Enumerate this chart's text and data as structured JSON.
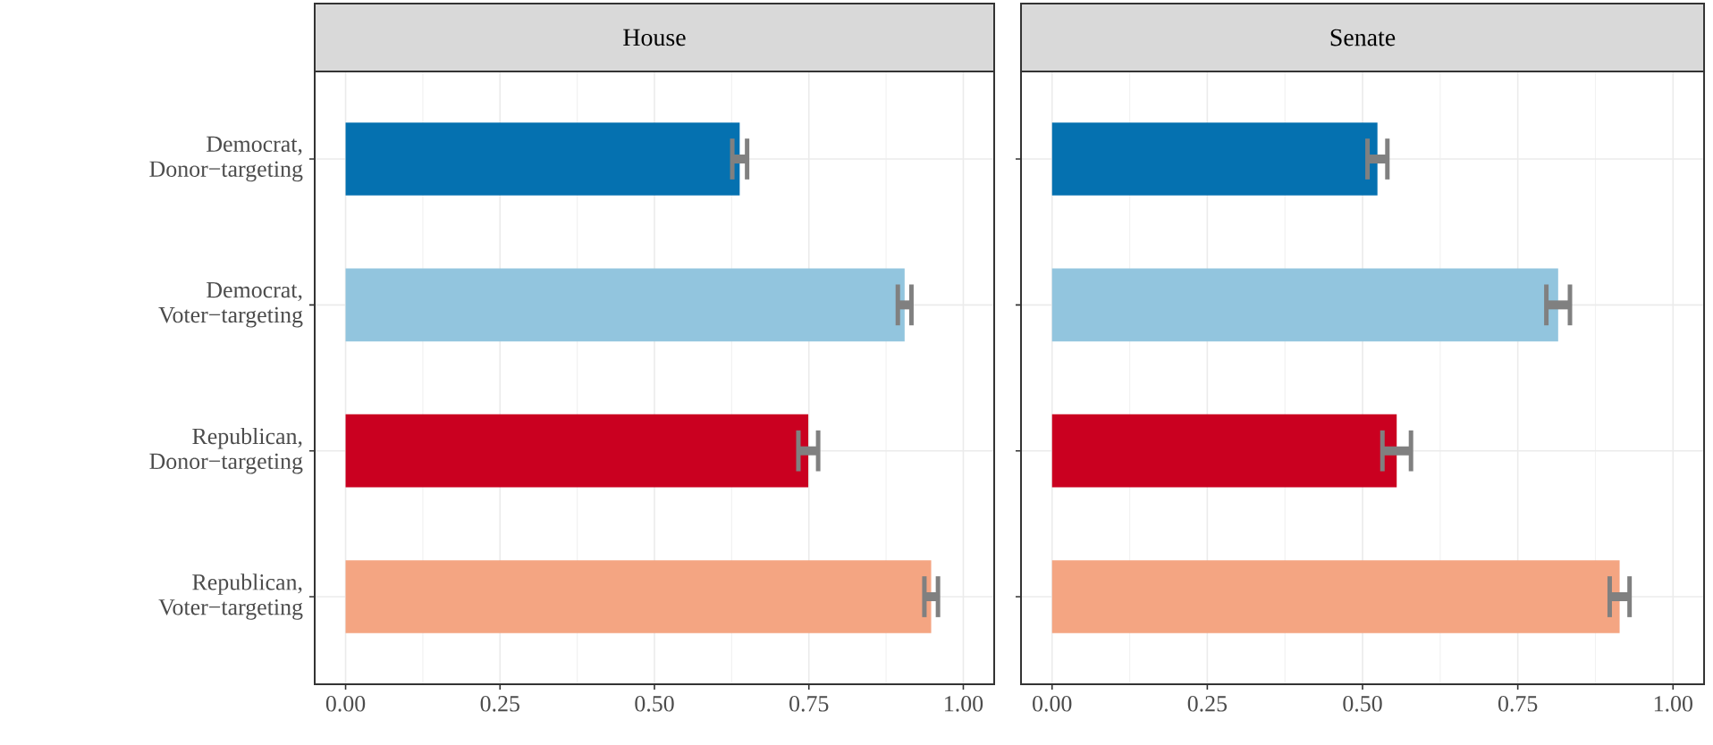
{
  "chart_data": [
    {
      "type": "bar",
      "orientation": "horizontal",
      "title": "House",
      "categories": [
        "Democrat, Donor−targeting",
        "Democrat, Voter−targeting",
        "Republican, Donor−targeting",
        "Republican, Voter−targeting"
      ],
      "values": [
        0.638,
        0.905,
        0.749,
        0.948
      ],
      "errors": [
        0.012,
        0.011,
        0.016,
        0.011
      ],
      "colors": [
        "#0571b0",
        "#92c5de",
        "#ca0020",
        "#f4a582"
      ],
      "xlim": [
        -0.05,
        1.05
      ],
      "xticks": [
        {
          "value": 0,
          "label": "0.00"
        },
        {
          "value": 0.25,
          "label": "0.25"
        },
        {
          "value": 0.5,
          "label": "0.50"
        },
        {
          "value": 0.75,
          "label": "0.75"
        },
        {
          "value": 1,
          "label": "1.00"
        }
      ],
      "grid": true
    },
    {
      "type": "bar",
      "orientation": "horizontal",
      "title": "Senate",
      "categories": [
        null,
        null,
        null,
        null
      ],
      "values": [
        0.524,
        0.815,
        0.555,
        0.914
      ],
      "errors": [
        0.016,
        0.019,
        0.023,
        0.016
      ],
      "colors": [
        "#0571b0",
        "#92c5de",
        "#ca0020",
        "#f4a582"
      ],
      "xlim": [
        -0.05,
        1.05
      ],
      "xticks": [
        {
          "value": 0,
          "label": "0.00"
        },
        {
          "value": 0.25,
          "label": "0.25"
        },
        {
          "value": 0.5,
          "label": "0.50"
        },
        {
          "value": 0.75,
          "label": "0.75"
        },
        {
          "value": 1,
          "label": "1.00"
        }
      ],
      "grid": true,
      "tick_labels": "x"
    }
  ]
}
